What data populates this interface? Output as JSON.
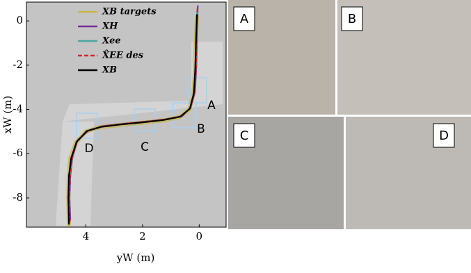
{
  "chart_data": {
    "type": "line",
    "xlabel": "yW (m)",
    "ylabel": "xW (m)",
    "xlim": [
      6.1,
      -0.95
    ],
    "ylim": [
      -9.32,
      0.85
    ],
    "xticks": [
      4,
      2,
      0
    ],
    "yticks": [
      0,
      -2,
      -4,
      -6,
      -8
    ],
    "series": [
      {
        "name": "XB targets",
        "color": "#c9b54a",
        "x": [
          4.6,
          4.62,
          4.6,
          4.55,
          4.35,
          4.0,
          3.5,
          2.8,
          2.0,
          1.3,
          0.7,
          0.35,
          0.2,
          0.15,
          0.12,
          0.08
        ],
        "values": [
          -9.2,
          -8.0,
          -7.0,
          -6.2,
          -5.5,
          -5.0,
          -4.8,
          -4.7,
          -4.6,
          -4.5,
          -4.35,
          -4.0,
          -3.3,
          -2.3,
          -1.0,
          0.2
        ]
      },
      {
        "name": "XH",
        "color": "#7b2d9e",
        "x": [
          4.55,
          4.58,
          4.55,
          4.48,
          4.3,
          3.9,
          3.4,
          2.7,
          1.9,
          1.2,
          0.6,
          0.3,
          0.15,
          0.1,
          0.08,
          0.05
        ],
        "values": [
          -9.0,
          -8.0,
          -7.0,
          -6.2,
          -5.4,
          -4.95,
          -4.75,
          -4.65,
          -4.55,
          -4.45,
          -4.3,
          -3.9,
          -3.2,
          -2.0,
          -0.5,
          0.7
        ]
      },
      {
        "name": "Xee",
        "color": "#4aa8a0",
        "x": [
          4.58,
          4.6,
          4.57,
          4.5,
          4.32,
          3.95,
          3.45,
          2.75,
          1.95,
          1.25,
          0.65,
          0.32,
          0.18,
          0.12,
          0.1,
          0.07
        ],
        "values": [
          -9.1,
          -8.0,
          -7.0,
          -6.2,
          -5.45,
          -4.97,
          -4.78,
          -4.67,
          -4.57,
          -4.47,
          -4.32,
          -3.95,
          -3.25,
          -2.1,
          -0.7,
          0.5
        ]
      },
      {
        "name": "X̂EE des",
        "color": "#d62728",
        "x": [
          4.57,
          4.6,
          4.56,
          4.49,
          4.31,
          3.93,
          3.43,
          2.73,
          1.93,
          1.23,
          0.63,
          0.31,
          0.17,
          0.11,
          0.09,
          0.06
        ],
        "values": [
          -9.1,
          -8.0,
          -7.0,
          -6.2,
          -5.43,
          -4.96,
          -4.77,
          -4.66,
          -4.56,
          -4.46,
          -4.31,
          -3.93,
          -3.23,
          -2.05,
          -0.6,
          0.6
        ]
      },
      {
        "name": "XB",
        "color": "#000000",
        "x": [
          4.6,
          4.62,
          4.6,
          4.52,
          4.33,
          3.97,
          3.47,
          2.77,
          1.97,
          1.27,
          0.67,
          0.33,
          0.19,
          0.14,
          0.11,
          0.08
        ],
        "values": [
          -9.2,
          -8.0,
          -7.0,
          -6.2,
          -5.47,
          -4.98,
          -4.79,
          -4.68,
          -4.58,
          -4.48,
          -4.33,
          -3.97,
          -3.28,
          -2.2,
          -0.8,
          0.3
        ]
      }
    ],
    "annotations": [
      "A",
      "B",
      "C",
      "D"
    ]
  },
  "panels": [
    "A",
    "B",
    "C",
    "D"
  ]
}
